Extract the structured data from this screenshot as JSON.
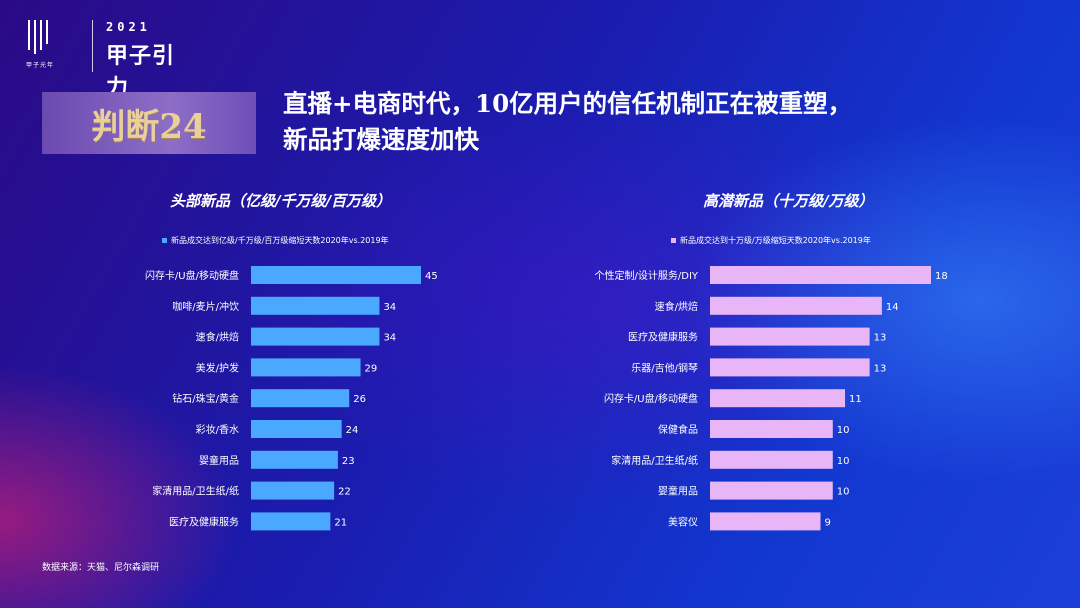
{
  "logo": {
    "small_text": "甲子光年",
    "year": "2021",
    "brand": "甲子引力"
  },
  "badge": {
    "text": "判断24"
  },
  "headline": {
    "line1": "直播+电商时代，10亿用户的信任机制正在被重塑，",
    "line2": "新品打爆速度加快"
  },
  "colors": {
    "left_bar": "#4aa8ff",
    "right_bar": "#e8b6f7"
  },
  "chart_data": [
    {
      "type": "bar",
      "orientation": "horizontal",
      "title": "头部新品（亿级/千万级/百万级）",
      "legend": "新品成交达到亿级/千万级/百万级缩短天数2020年vs.2019年",
      "categories": [
        "闪存卡/U盘/移动硬盘",
        "咖啡/麦片/冲饮",
        "速食/烘焙",
        "美发/护发",
        "钻石/珠宝/黄金",
        "彩妆/香水",
        "婴童用品",
        "家清用品/卫生纸/纸",
        "医疗及健康服务"
      ],
      "values": [
        45,
        34,
        34,
        29,
        26,
        24,
        23,
        22,
        21
      ],
      "color": "#4aa8ff"
    },
    {
      "type": "bar",
      "orientation": "horizontal",
      "title": "高潜新品（十万级/万级）",
      "legend": "新品成交达到十万级/万级缩短天数2020年vs.2019年",
      "categories": [
        "个性定制/设计服务/DIY",
        "速食/烘焙",
        "医疗及健康服务",
        "乐器/吉他/钢琴",
        "闪存卡/U盘/移动硬盘",
        "保健食品",
        "家清用品/卫生纸/纸",
        "婴童用品",
        "美容仪"
      ],
      "values": [
        18,
        14,
        13,
        13,
        11,
        10,
        10,
        10,
        9
      ],
      "color": "#e8b6f7"
    }
  ],
  "source": "数据来源：天猫、尼尔森调研"
}
